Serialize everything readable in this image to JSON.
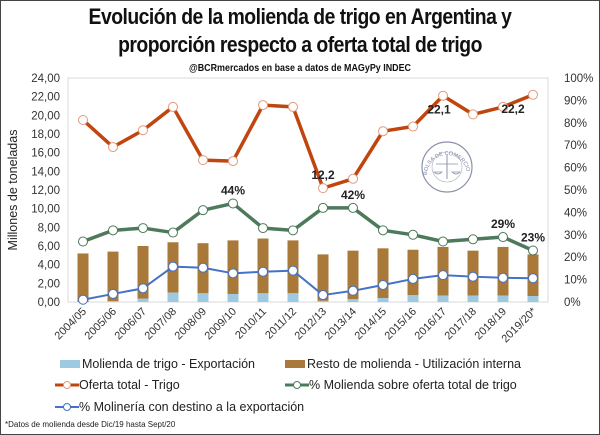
{
  "title_line1": "Evolución de la molienda de trigo en Argentina y",
  "title_line2": "proporción respecto a oferta total de trigo",
  "subtitle": "@BCRmercados en base a datos de MAGyPy INDEC",
  "footnote": "*Datos de molienda desde Dic/19 hasta Sept/20",
  "watermark": {
    "text": "BOLSA DE COMERCIO DE ROSARIO",
    "icon": "bcr-seal-icon"
  },
  "colors": {
    "export_bar": "#9ecae1",
    "internal_bar": "#a87938",
    "oferta": "#c0450f",
    "pct_molienda": "#4e7a5c",
    "pct_export": "#4472c4"
  },
  "chart_data": {
    "type": "bar+line",
    "title": "Evolución de la molienda de trigo en Argentina y proporción respecto a oferta total de trigo",
    "subtitle": "@BCRmercados en base a datos de MAGyPy INDEC",
    "categories": [
      "2004/05",
      "2005/06",
      "2006/07",
      "2007/08",
      "2008/09",
      "2009/10",
      "2010/11",
      "2011/12",
      "2012/13",
      "2013/14",
      "2014/15",
      "2015/16",
      "2016/17",
      "2017/18",
      "2018/19",
      "2019/20*"
    ],
    "ylabel": "Millones de toneladas",
    "ylim": [
      0,
      24
    ],
    "yticks": [
      "0,00",
      "2,00",
      "4,00",
      "6,00",
      "8,00",
      "10,00",
      "12,00",
      "14,00",
      "16,00",
      "18,00",
      "20,00",
      "22,00",
      "24,00"
    ],
    "y2lim": [
      0,
      100
    ],
    "y2ticks": [
      "0%",
      "10%",
      "20%",
      "30%",
      "40%",
      "50%",
      "60%",
      "70%",
      "80%",
      "90%",
      "100%"
    ],
    "grid": false,
    "legend_position": "bottom",
    "series": [
      {
        "name": "Molienda de trigo - Exportación",
        "type": "stacked-bar",
        "axis": "left",
        "values": [
          0.0,
          0.1,
          0.35,
          1.0,
          0.93,
          0.86,
          0.93,
          0.93,
          0.12,
          0.29,
          0.43,
          0.75,
          0.68,
          0.68,
          0.68,
          0.64
        ]
      },
      {
        "name": "Resto de molienda - Utilización interna",
        "type": "stacked-bar",
        "axis": "left",
        "values": [
          5.2,
          5.3,
          5.65,
          5.4,
          5.37,
          5.74,
          5.87,
          5.67,
          4.98,
          5.21,
          5.32,
          4.85,
          5.22,
          4.82,
          5.22,
          4.46
        ]
      },
      {
        "name": "Oferta total - Trigo",
        "type": "line",
        "axis": "left",
        "values": [
          19.5,
          16.6,
          18.4,
          20.9,
          15.2,
          15.1,
          21.1,
          20.9,
          12.2,
          13.2,
          18.3,
          18.8,
          22.1,
          20.1,
          20.9,
          22.2
        ]
      },
      {
        "name": "% Molienda sobre oferta total de trigo",
        "type": "line",
        "axis": "right",
        "values": [
          27,
          32,
          33,
          31,
          41,
          44,
          33,
          32,
          42,
          42,
          32,
          30,
          27,
          28,
          29,
          23
        ]
      },
      {
        "name": "% Molinería con destino a la exportación",
        "type": "line",
        "axis": "right",
        "values": [
          1,
          3.6,
          6.1,
          15.8,
          15.3,
          12.8,
          13.5,
          14,
          3.1,
          5,
          7.6,
          10.3,
          12,
          11.3,
          10.8,
          10.6
        ]
      }
    ],
    "annotations": [
      {
        "series": "Oferta total - Trigo",
        "category": "2012/13",
        "text": "12,2",
        "place": "above"
      },
      {
        "series": "Oferta total - Trigo",
        "category": "2016/17",
        "text": "22,1",
        "place": "below"
      },
      {
        "series": "Oferta total - Trigo",
        "category": "2019/20*",
        "text": "22,2",
        "place": "below-left"
      },
      {
        "series": "% Molienda sobre oferta total de trigo",
        "category": "2009/10",
        "text": "44%",
        "place": "above"
      },
      {
        "series": "% Molienda sobre oferta total de trigo",
        "category": "2013/14",
        "text": "42%",
        "place": "above"
      },
      {
        "series": "% Molienda sobre oferta total de trigo",
        "category": "2018/19",
        "text": "29%",
        "place": "above"
      },
      {
        "series": "% Molienda sobre oferta total de trigo",
        "category": "2019/20*",
        "text": "23%",
        "place": "above"
      }
    ]
  }
}
